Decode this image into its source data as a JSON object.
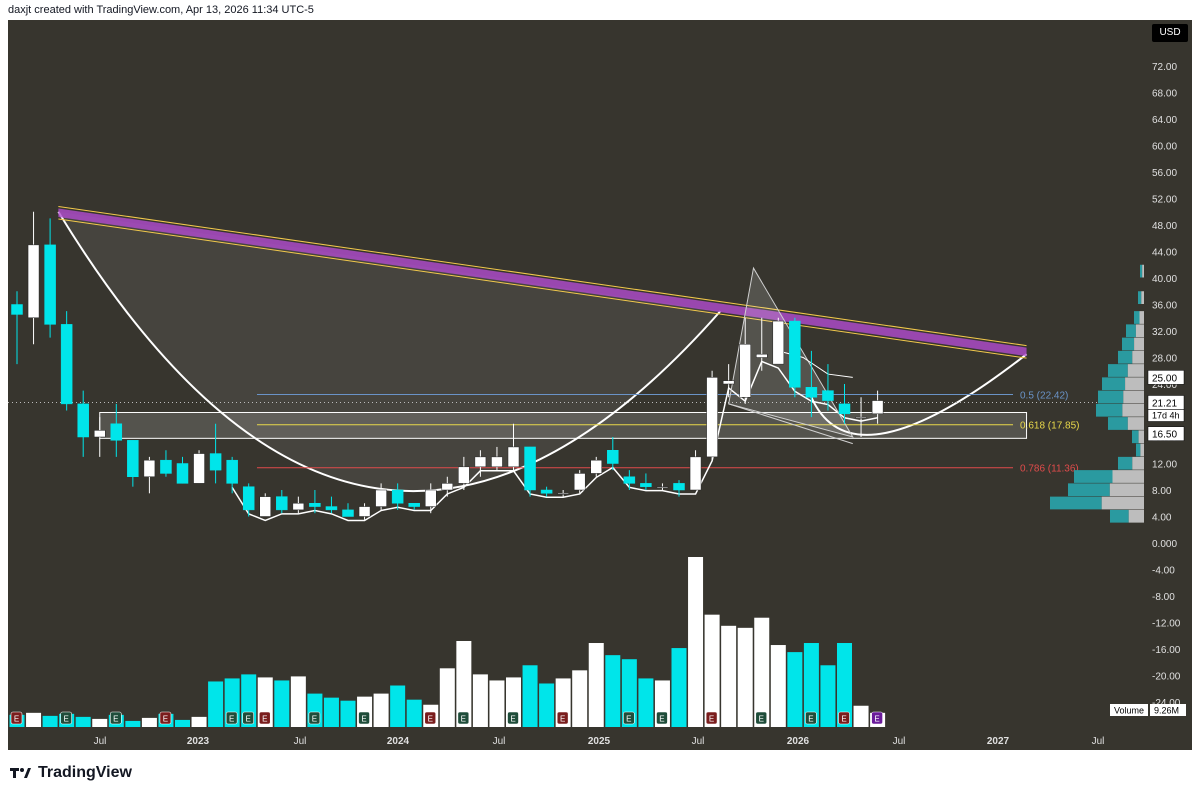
{
  "header": {
    "credit": "daxjt created with TradingView.com, Apr 13, 2026 11:34 UTC-5"
  },
  "footer": {
    "brand": "TradingView"
  },
  "currency": "USD",
  "colors": {
    "bg": "#37352e",
    "up": "#ffffff",
    "down": "#00e5ea",
    "fib05": "#6a93c7",
    "fib0618": "#e8d84a",
    "fib0786": "#e04b4b",
    "trend_outer": "#f2c94c",
    "trend_inner": "#b24ccf",
    "axis_text": "#e0e0e0"
  },
  "chart_data": {
    "type": "candlestick",
    "interval": "1M",
    "x_axis_labels": [
      "Jul",
      "2023",
      "Jul",
      "2024",
      "Jul",
      "2025",
      "Jul",
      "2026",
      "Jul",
      "2027",
      "Jul"
    ],
    "y_axis_ticks": [
      "72.00",
      "68.00",
      "64.00",
      "60.00",
      "56.00",
      "52.00",
      "48.00",
      "44.00",
      "40.00",
      "36.00",
      "32.00",
      "28.00",
      "24.00",
      "20.00",
      "16.00",
      "12.00",
      "8.00",
      "4.00",
      "0.000",
      "-4.00",
      "-8.00",
      "-12.00",
      "-16.00",
      "-20.00",
      "-24.00"
    ],
    "y_axis_range": [
      -26,
      76
    ],
    "price_labels": {
      "target": "25.00",
      "last_price": "21.21",
      "countdown": "17d 4h",
      "support": "16.50"
    },
    "fib_levels": [
      {
        "label": "0.5 (22.42)",
        "value": 22.42
      },
      {
        "label": "0.618 (17.85)",
        "value": 17.85
      },
      {
        "label": "0.786 (11.36)",
        "value": 11.36
      }
    ],
    "volume_label": {
      "name": "Volume",
      "value": "9.26M"
    },
    "candles": [
      {
        "o": 36,
        "h": 38,
        "l": 27,
        "c": 34.5
      },
      {
        "o": 34,
        "h": 50,
        "l": 30,
        "c": 45
      },
      {
        "o": 45,
        "h": 49,
        "l": 31,
        "c": 33
      },
      {
        "o": 33,
        "h": 35,
        "l": 20,
        "c": 21
      },
      {
        "o": 21,
        "h": 23,
        "l": 13,
        "c": 16
      },
      {
        "o": 16,
        "h": 19,
        "l": 13,
        "c": 17
      },
      {
        "o": 18,
        "h": 21,
        "l": 13,
        "c": 15.5
      },
      {
        "o": 15.5,
        "h": 15.5,
        "l": 8.5,
        "c": 10
      },
      {
        "o": 10,
        "h": 13,
        "l": 7.5,
        "c": 12.5
      },
      {
        "o": 12.5,
        "h": 14,
        "l": 10,
        "c": 10.5
      },
      {
        "o": 12,
        "h": 13,
        "l": 9,
        "c": 9
      },
      {
        "o": 9,
        "h": 14,
        "l": 9,
        "c": 13.5
      },
      {
        "o": 13.5,
        "h": 18,
        "l": 9,
        "c": 11
      },
      {
        "o": 12.5,
        "h": 13,
        "l": 7.5,
        "c": 9
      },
      {
        "o": 8.5,
        "h": 9,
        "l": 4,
        "c": 5
      },
      {
        "o": 4,
        "h": 7.5,
        "l": 4,
        "c": 7
      },
      {
        "o": 7,
        "h": 8,
        "l": 4.5,
        "c": 5
      },
      {
        "o": 5,
        "h": 7,
        "l": 4.5,
        "c": 6
      },
      {
        "o": 6,
        "h": 8,
        "l": 4.5,
        "c": 5.5
      },
      {
        "o": 5.5,
        "h": 7,
        "l": 4.5,
        "c": 5
      },
      {
        "o": 5,
        "h": 6,
        "l": 4,
        "c": 4
      },
      {
        "o": 4,
        "h": 6,
        "l": 3.5,
        "c": 5.5
      },
      {
        "o": 5.5,
        "h": 9,
        "l": 5,
        "c": 8
      },
      {
        "o": 8,
        "h": 9,
        "l": 5,
        "c": 6
      },
      {
        "o": 6,
        "h": 6,
        "l": 5,
        "c": 5.5
      },
      {
        "o": 5.5,
        "h": 9,
        "l": 4.5,
        "c": 8
      },
      {
        "o": 8,
        "h": 10,
        "l": 7,
        "c": 9
      },
      {
        "o": 9,
        "h": 13,
        "l": 8,
        "c": 11.5
      },
      {
        "o": 11.5,
        "h": 14,
        "l": 10,
        "c": 13
      },
      {
        "o": 11.5,
        "h": 14.5,
        "l": 11,
        "c": 13
      },
      {
        "o": 11.5,
        "h": 18,
        "l": 11,
        "c": 14.5
      },
      {
        "o": 14.5,
        "h": 14.5,
        "l": 7,
        "c": 8
      },
      {
        "o": 8,
        "h": 8.5,
        "l": 7,
        "c": 7.5
      },
      {
        "o": 7.5,
        "h": 8,
        "l": 7,
        "c": 7.5
      },
      {
        "o": 8,
        "h": 11,
        "l": 7.5,
        "c": 10.5
      },
      {
        "o": 10.5,
        "h": 13,
        "l": 10,
        "c": 12.5
      },
      {
        "o": 14,
        "h": 16,
        "l": 11,
        "c": 12
      },
      {
        "o": 10,
        "h": 11,
        "l": 8,
        "c": 9
      },
      {
        "o": 9,
        "h": 10.5,
        "l": 8,
        "c": 8.5
      },
      {
        "o": 8.5,
        "h": 9,
        "l": 8,
        "c": 8.5
      },
      {
        "o": 9,
        "h": 9.5,
        "l": 7,
        "c": 8
      },
      {
        "o": 8,
        "h": 14,
        "l": 8,
        "c": 13
      },
      {
        "o": 13,
        "h": 26,
        "l": 12.5,
        "c": 25
      },
      {
        "o": 24,
        "h": 27,
        "l": 22,
        "c": 24.5
      },
      {
        "o": 22,
        "h": 34,
        "l": 21,
        "c": 30
      },
      {
        "o": 28,
        "h": 34,
        "l": 26,
        "c": 28.5
      },
      {
        "o": 27,
        "h": 34,
        "l": 27,
        "c": 33.5
      },
      {
        "o": 33.5,
        "h": 34,
        "l": 22,
        "c": 23.5
      },
      {
        "o": 23.5,
        "h": 29,
        "l": 19,
        "c": 22
      },
      {
        "o": 23,
        "h": 27,
        "l": 20,
        "c": 21.5
      },
      {
        "o": 21,
        "h": 24,
        "l": 18,
        "c": 19.5
      },
      {
        "o": 19,
        "h": 22,
        "l": 16,
        "c": 19
      },
      {
        "o": 19.5,
        "h": 23,
        "l": 18,
        "c": 21.5
      }
    ],
    "volumes": [
      1.2,
      1.4,
      1.1,
      1.3,
      1.0,
      0.8,
      1.2,
      0.6,
      0.9,
      1.3,
      0.7,
      1.0,
      4.5,
      4.8,
      5.2,
      4.9,
      4.6,
      5.0,
      3.3,
      2.9,
      2.6,
      3.0,
      3.3,
      4.1,
      2.7,
      2.2,
      5.8,
      8.5,
      5.2,
      4.6,
      4.9,
      6.1,
      4.3,
      4.8,
      5.6,
      8.3,
      7.1,
      6.7,
      4.8,
      4.6,
      7.8,
      16.8,
      11.1,
      10.0,
      9.8,
      10.8,
      8.1,
      7.4,
      8.3,
      6.1,
      8.3,
      2.1,
      1.4
    ],
    "earnings_markers": [
      "E",
      "E",
      "E",
      "E",
      "E",
      "E",
      "E",
      "E",
      "E",
      "E",
      "E",
      "E",
      "E",
      "E",
      "E",
      "E",
      "E"
    ]
  }
}
